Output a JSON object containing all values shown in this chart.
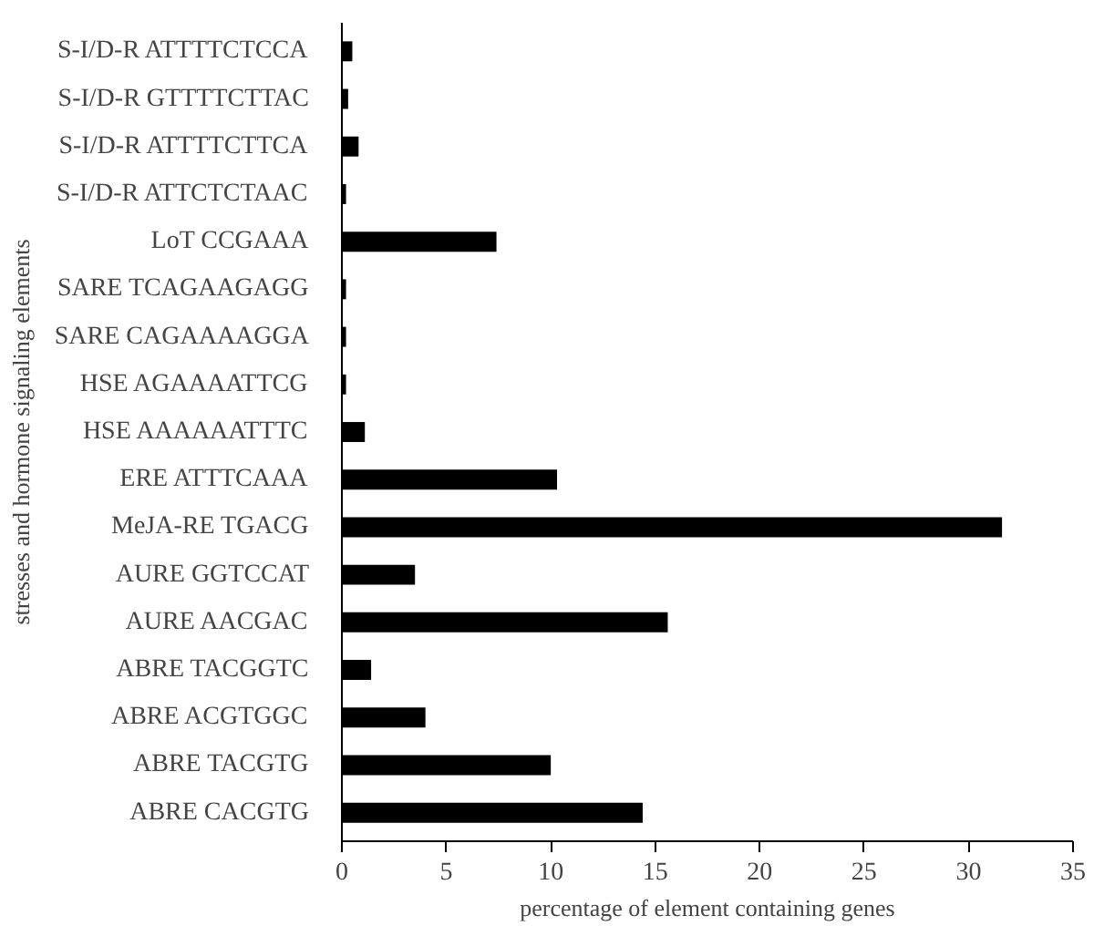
{
  "chart_data": {
    "type": "bar",
    "orientation": "horizontal",
    "xlabel": "percentage of element containing genes",
    "ylabel": "stresses and hormone signaling elements",
    "categories": [
      "S-I/D-R ATTTTCTCCA",
      "S-I/D-R GTTTTCTTAC",
      "S-I/D-R ATTTTCTTCA",
      "S-I/D-R ATTCTCTAAC",
      "LoT CCGAAA",
      "SARE TCAGAAGAGG",
      "SARE CAGAAAAGGA",
      "HSE AGAAAATTCG",
      "HSE AAAAAATTTC",
      "ERE ATTTCAAA",
      "MeJA-RE TGACG",
      "AURE GGTCCAT",
      "AURE AACGAC",
      "ABRE TACGGTC",
      "ABRE ACGTGGC",
      "ABRE TACGTG",
      "ABRE CACGTG"
    ],
    "values": [
      0.5,
      0.3,
      0.8,
      0.2,
      7.4,
      0.2,
      0.2,
      0.2,
      1.1,
      10.3,
      31.6,
      3.5,
      15.6,
      1.4,
      4.0,
      10.0,
      14.4
    ],
    "color": "#000000",
    "xlim": [
      0,
      35
    ],
    "xticks": [
      0,
      5,
      10,
      15,
      20,
      25,
      30,
      35
    ],
    "grid": false
  }
}
